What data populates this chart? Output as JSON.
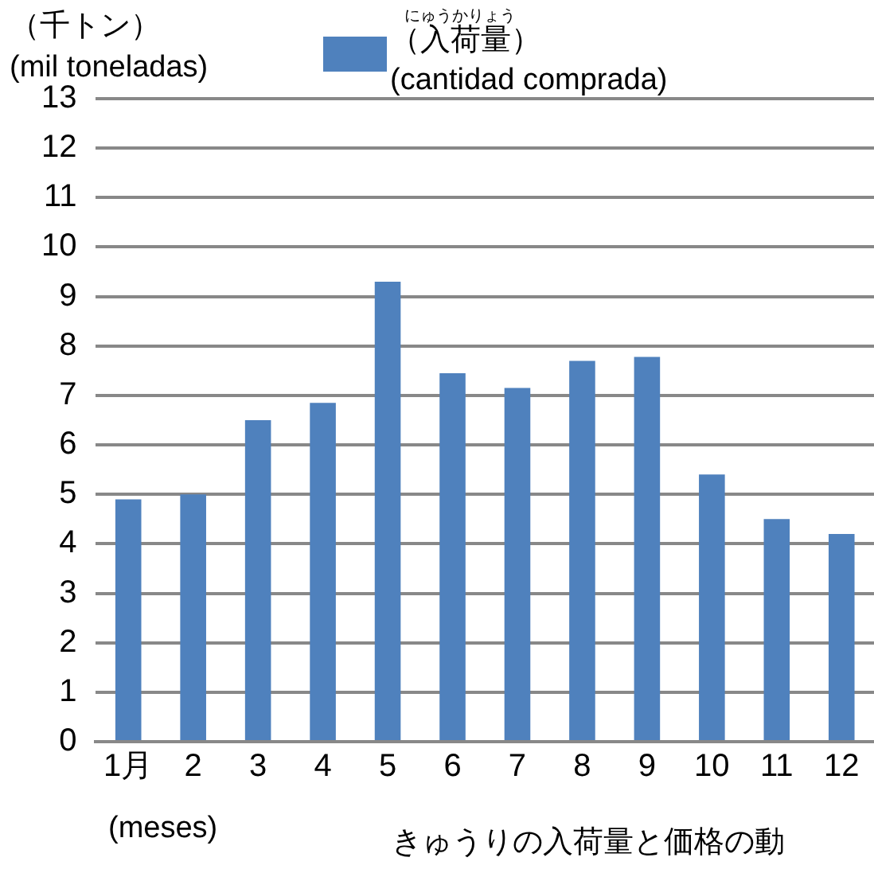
{
  "chart_data": {
    "type": "bar",
    "title": "きゅうりの入荷量と価格の動",
    "ylabel": "（千トン）\n(mil toneladas)",
    "xlabel": "(meses)",
    "categories": [
      "1月",
      "2",
      "3",
      "4",
      "5",
      "6",
      "7",
      "8",
      "9",
      "10",
      "11",
      "12"
    ],
    "series": [
      {
        "name": "（入荷量）\n(cantidad comprada)",
        "color": "#4f81bd",
        "values": [
          4.9,
          5.0,
          6.5,
          6.85,
          9.3,
          7.45,
          7.15,
          7.7,
          7.78,
          5.4,
          4.5,
          4.2
        ]
      }
    ],
    "annotations": [
      "にゅうかりょう"
    ],
    "ylim": [
      0,
      13
    ],
    "yticks": [
      0,
      1,
      2,
      3,
      4,
      5,
      6,
      7,
      8,
      9,
      10,
      11,
      12,
      13
    ],
    "grid": "y",
    "legend": "top"
  }
}
